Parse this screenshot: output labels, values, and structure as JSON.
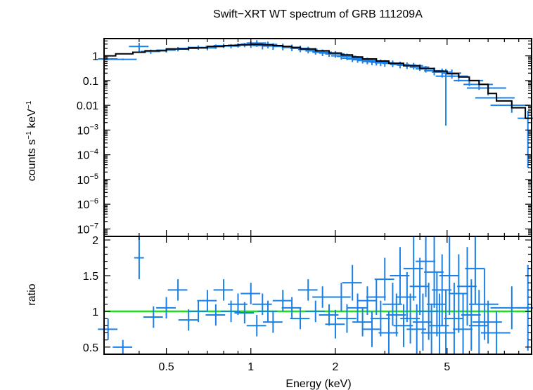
{
  "chart_data": [
    {
      "panel": "spectrum",
      "type": "scatter",
      "title": "Swift−XRT WT spectrum of GRB 111209A",
      "ylabel_parts": [
        "counts s",
        "−1",
        " keV",
        "−1"
      ],
      "xscale": "log",
      "yscale": "log",
      "xlim": [
        0.3,
        10.0
      ],
      "ylim": [
        5e-08,
        5.0
      ],
      "grid": false,
      "y_ticks": [
        {
          "value": 1,
          "label": "1"
        },
        {
          "value": 0.1,
          "label": "0.1"
        },
        {
          "value": 0.01,
          "label": "0.01"
        },
        {
          "value": 0.001,
          "base": "10",
          "exp": "−3"
        },
        {
          "value": 0.0001,
          "base": "10",
          "exp": "−4"
        },
        {
          "value": 1e-05,
          "base": "10",
          "exp": "−5"
        },
        {
          "value": 1e-06,
          "base": "10",
          "exp": "−6"
        },
        {
          "value": 1e-07,
          "base": "10",
          "exp": "−7"
        }
      ],
      "series": [
        {
          "kind": "data",
          "color": "#1a80e6",
          "points": [
            [
              0.31,
              0.75,
              0.02,
              0.1
            ],
            [
              0.35,
              0.72,
              0.03,
              0.08
            ],
            [
              0.4,
              2.4,
              0.02,
              0.4
            ],
            [
              0.44,
              1.5,
              0.02,
              0.2
            ],
            [
              0.5,
              1.7,
              0.02,
              0.2
            ],
            [
              0.55,
              1.9,
              0.02,
              0.2
            ],
            [
              0.6,
              2.0,
              0.02,
              0.2
            ],
            [
              0.65,
              2.2,
              0.02,
              0.2
            ],
            [
              0.7,
              2.1,
              0.02,
              0.2
            ],
            [
              0.75,
              2.4,
              0.02,
              0.2
            ],
            [
              0.8,
              2.6,
              0.02,
              0.2
            ],
            [
              0.85,
              2.5,
              0.02,
              0.2
            ],
            [
              0.9,
              2.7,
              0.02,
              0.2
            ],
            [
              0.95,
              2.8,
              0.02,
              0.2
            ],
            [
              1.0,
              3.0,
              0.02,
              0.3
            ],
            [
              1.05,
              3.3,
              0.02,
              0.3
            ],
            [
              1.1,
              2.6,
              0.02,
              0.3
            ],
            [
              1.15,
              2.9,
              0.02,
              0.3
            ],
            [
              1.2,
              2.5,
              0.02,
              0.3
            ],
            [
              1.3,
              2.4,
              0.02,
              0.3
            ],
            [
              1.4,
              2.2,
              0.02,
              0.3
            ],
            [
              1.5,
              2.0,
              0.02,
              0.3
            ],
            [
              1.6,
              1.8,
              0.02,
              0.3
            ],
            [
              1.7,
              1.6,
              0.02,
              0.3
            ],
            [
              1.8,
              1.4,
              0.02,
              0.3
            ],
            [
              1.9,
              1.3,
              0.02,
              0.3
            ],
            [
              2.0,
              1.2,
              0.02,
              0.3
            ],
            [
              2.1,
              1.0,
              0.02,
              0.3
            ],
            [
              2.2,
              0.95,
              0.02,
              0.3
            ],
            [
              2.3,
              0.8,
              0.02,
              0.3
            ],
            [
              2.4,
              0.75,
              0.02,
              0.3
            ],
            [
              2.5,
              0.7,
              0.02,
              0.3
            ],
            [
              2.6,
              0.65,
              0.02,
              0.3
            ],
            [
              2.7,
              0.6,
              0.02,
              0.3
            ],
            [
              2.8,
              0.58,
              0.02,
              0.3
            ],
            [
              2.9,
              0.55,
              0.02,
              0.3
            ],
            [
              3.0,
              0.52,
              0.02,
              0.3
            ],
            [
              3.2,
              0.5,
              0.02,
              0.3
            ],
            [
              3.4,
              0.45,
              0.02,
              0.3
            ],
            [
              3.6,
              0.42,
              0.02,
              0.3
            ],
            [
              3.8,
              0.4,
              0.02,
              0.3
            ],
            [
              4.0,
              0.35,
              0.02,
              0.3
            ],
            [
              4.2,
              0.3,
              0.02,
              0.3
            ],
            [
              4.5,
              0.25,
              0.02,
              0.35
            ],
            [
              4.8,
              0.22,
              0.02,
              0.4
            ],
            [
              4.95,
              0.15,
              0.02,
              0.99
            ],
            [
              5.2,
              0.2,
              0.02,
              0.4
            ],
            [
              5.5,
              0.15,
              0.02,
              0.4
            ],
            [
              6.0,
              0.1,
              0.03,
              0.4
            ],
            [
              6.5,
              0.07,
              0.03,
              0.4
            ],
            [
              7.0,
              0.05,
              0.04,
              0.5
            ],
            [
              7.5,
              0.02,
              0.04,
              0.3
            ],
            [
              8.5,
              0.01,
              0.04,
              0.5
            ],
            [
              9.7,
              0.003,
              0.02,
              0.99
            ]
          ]
        },
        {
          "kind": "model",
          "color": "#000000",
          "steps": [
            [
              0.3,
              0.33,
              1.0
            ],
            [
              0.33,
              0.38,
              1.2
            ],
            [
              0.38,
              0.42,
              1.4
            ],
            [
              0.42,
              0.5,
              1.6
            ],
            [
              0.5,
              0.6,
              1.9
            ],
            [
              0.6,
              0.7,
              2.1
            ],
            [
              0.7,
              0.8,
              2.4
            ],
            [
              0.8,
              0.9,
              2.6
            ],
            [
              0.9,
              1.0,
              2.8
            ],
            [
              1.0,
              1.1,
              2.9
            ],
            [
              1.1,
              1.2,
              2.8
            ],
            [
              1.2,
              1.3,
              2.6
            ],
            [
              1.3,
              1.4,
              2.4
            ],
            [
              1.4,
              1.5,
              2.2
            ],
            [
              1.5,
              1.7,
              1.9
            ],
            [
              1.7,
              1.9,
              1.6
            ],
            [
              1.9,
              2.1,
              1.3
            ],
            [
              2.1,
              2.3,
              1.1
            ],
            [
              2.3,
              2.5,
              0.9
            ],
            [
              2.5,
              2.8,
              0.75
            ],
            [
              2.8,
              3.1,
              0.62
            ],
            [
              3.1,
              3.5,
              0.5
            ],
            [
              3.5,
              4.0,
              0.4
            ],
            [
              4.0,
              4.5,
              0.31
            ],
            [
              4.5,
              5.0,
              0.24
            ],
            [
              5.0,
              5.5,
              0.19
            ],
            [
              5.5,
              6.0,
              0.14
            ],
            [
              6.0,
              6.5,
              0.1
            ],
            [
              6.5,
              7.0,
              0.07
            ],
            [
              7.0,
              7.5,
              0.03
            ],
            [
              7.5,
              8.5,
              0.015
            ],
            [
              8.5,
              9.5,
              0.008
            ],
            [
              9.5,
              10.0,
              0.003
            ]
          ]
        }
      ]
    },
    {
      "panel": "ratio",
      "type": "scatter",
      "xlabel": "Energy (keV)",
      "ylabel": "ratio",
      "xscale": "log",
      "xlim": [
        0.3,
        10.0
      ],
      "ylim": [
        0.4,
        2.05
      ],
      "grid": false,
      "x_ticks": [
        {
          "value": 0.5,
          "label": "0.5"
        },
        {
          "value": 1,
          "label": "1"
        },
        {
          "value": 2,
          "label": "2"
        },
        {
          "value": 5,
          "label": "5"
        }
      ],
      "y_ticks": [
        {
          "value": 0.5,
          "label": "0.5"
        },
        {
          "value": 1,
          "label": "1"
        },
        {
          "value": 1.5,
          "label": "1.5"
        },
        {
          "value": 2,
          "label": "2"
        }
      ],
      "reference_line": {
        "y": 1.0,
        "color": "#22dd22"
      },
      "series": [
        {
          "kind": "ratio",
          "color": "#1a80e6",
          "points": [
            [
              0.31,
              0.75,
              0.02,
              0.15
            ],
            [
              0.35,
              0.5,
              0.02,
              0.1
            ],
            [
              0.4,
              1.75,
              0.01,
              0.3
            ],
            [
              0.45,
              0.92,
              0.02,
              0.15
            ],
            [
              0.5,
              1.05,
              0.02,
              0.15
            ],
            [
              0.55,
              1.3,
              0.02,
              0.15
            ],
            [
              0.6,
              0.88,
              0.02,
              0.15
            ],
            [
              0.65,
              1.0,
              0.02,
              0.15
            ],
            [
              0.7,
              1.15,
              0.02,
              0.15
            ],
            [
              0.75,
              0.95,
              0.02,
              0.15
            ],
            [
              0.8,
              1.3,
              0.02,
              0.15
            ],
            [
              0.85,
              1.0,
              0.02,
              0.15
            ],
            [
              0.9,
              1.1,
              0.02,
              0.15
            ],
            [
              0.95,
              0.98,
              0.02,
              0.15
            ],
            [
              1.0,
              1.25,
              0.02,
              0.15
            ],
            [
              1.05,
              0.8,
              0.02,
              0.15
            ],
            [
              1.1,
              1.1,
              0.02,
              0.15
            ],
            [
              1.15,
              1.0,
              0.02,
              0.15
            ],
            [
              1.2,
              0.85,
              0.02,
              0.15
            ],
            [
              1.3,
              1.15,
              0.02,
              0.15
            ],
            [
              1.4,
              1.05,
              0.02,
              0.15
            ],
            [
              1.5,
              0.9,
              0.02,
              0.15
            ],
            [
              1.6,
              1.3,
              0.02,
              0.15
            ],
            [
              1.7,
              1.0,
              0.02,
              0.15
            ],
            [
              1.8,
              1.2,
              0.02,
              0.15
            ],
            [
              1.9,
              0.95,
              0.02,
              0.15
            ],
            [
              2.0,
              0.82,
              0.02,
              0.2
            ],
            [
              2.1,
              1.2,
              0.02,
              0.2
            ],
            [
              2.2,
              0.9,
              0.02,
              0.2
            ],
            [
              2.3,
              1.4,
              0.02,
              0.25
            ],
            [
              2.4,
              1.05,
              0.02,
              0.2
            ],
            [
              2.5,
              0.85,
              0.02,
              0.2
            ],
            [
              2.6,
              1.15,
              0.02,
              0.2
            ],
            [
              2.7,
              0.75,
              0.02,
              0.25
            ],
            [
              2.8,
              1.2,
              0.02,
              0.25
            ],
            [
              2.9,
              0.9,
              0.02,
              0.25
            ],
            [
              3.0,
              1.45,
              0.02,
              0.3
            ],
            [
              3.1,
              0.7,
              0.02,
              0.3
            ],
            [
              3.2,
              1.1,
              0.02,
              0.3
            ],
            [
              3.3,
              0.95,
              0.02,
              0.3
            ],
            [
              3.4,
              1.5,
              0.02,
              0.4
            ],
            [
              3.5,
              0.8,
              0.02,
              0.3
            ],
            [
              3.6,
              1.2,
              0.02,
              0.35
            ],
            [
              3.7,
              0.9,
              0.02,
              0.35
            ],
            [
              3.8,
              1.6,
              0.02,
              0.45
            ],
            [
              3.9,
              0.75,
              0.02,
              0.35
            ],
            [
              4.0,
              1.35,
              0.02,
              0.4
            ],
            [
              4.1,
              0.85,
              0.02,
              0.4
            ],
            [
              4.2,
              1.7,
              0.02,
              0.5
            ],
            [
              4.3,
              1.0,
              0.02,
              0.4
            ],
            [
              4.4,
              0.7,
              0.02,
              0.4
            ],
            [
              4.5,
              1.55,
              0.02,
              0.5
            ],
            [
              4.6,
              1.1,
              0.02,
              0.45
            ],
            [
              4.7,
              0.8,
              0.02,
              0.45
            ],
            [
              4.8,
              1.3,
              0.02,
              0.5
            ],
            [
              4.95,
              0.7,
              0.02,
              0.6
            ],
            [
              5.1,
              1.5,
              0.02,
              0.55
            ],
            [
              5.3,
              0.9,
              0.02,
              0.5
            ],
            [
              5.5,
              1.25,
              0.02,
              0.55
            ],
            [
              5.7,
              0.75,
              0.02,
              0.5
            ],
            [
              5.9,
              1.35,
              0.02,
              0.55
            ],
            [
              6.1,
              0.95,
              0.02,
              0.5
            ],
            [
              6.3,
              1.6,
              0.02,
              0.5
            ],
            [
              6.5,
              0.8,
              0.02,
              0.5
            ],
            [
              6.8,
              1.1,
              0.03,
              0.5
            ],
            [
              7.0,
              0.85,
              0.03,
              0.3
            ],
            [
              7.5,
              0.7,
              0.03,
              0.3
            ],
            [
              8.5,
              1.05,
              0.04,
              0.3
            ],
            [
              9.7,
              1.05,
              0.02,
              0.6
            ]
          ]
        }
      ]
    }
  ]
}
